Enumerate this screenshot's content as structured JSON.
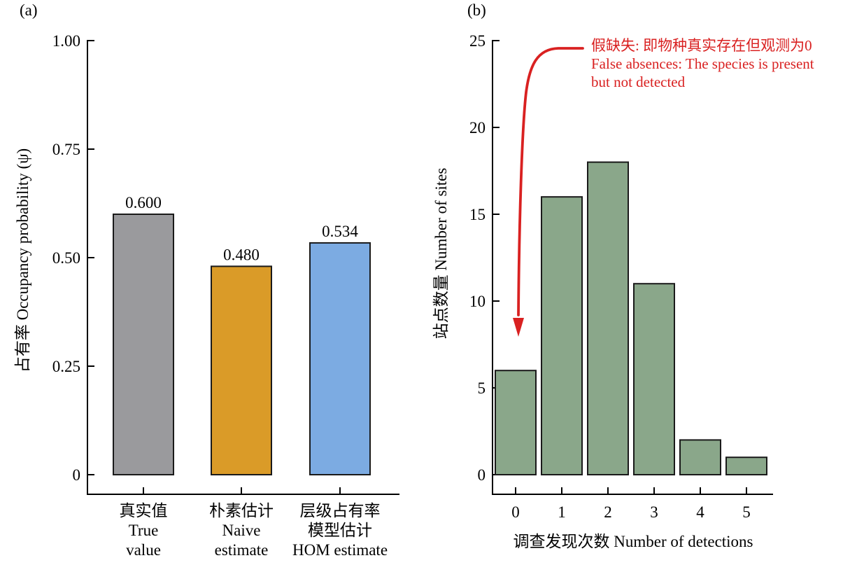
{
  "panels": {
    "a": {
      "tag": "(a)"
    },
    "b": {
      "tag": "(b)"
    }
  },
  "chart_data": [
    {
      "type": "bar",
      "panel": "a",
      "title": "",
      "ylabel": "占有率 Occupancy probability (ψ)",
      "xlabel": "",
      "categories": [
        [
          "真实值",
          "True",
          "value"
        ],
        [
          "朴素估计",
          "Naive",
          "estimate"
        ],
        [
          "层级占有率",
          "模型估计",
          "HOM estimate"
        ]
      ],
      "values": [
        0.6,
        0.48,
        0.534
      ],
      "value_labels": [
        "0.600",
        "0.480",
        "0.534"
      ],
      "colors": [
        "#9A9A9D",
        "#DA9B28",
        "#7CABE2"
      ],
      "bar_border_color": "#1a1a1a",
      "ytick_values": [
        0,
        0.25,
        0.5,
        0.75,
        1.0
      ],
      "ytick_labels": [
        "0",
        "0.25",
        "0.50",
        "0.75",
        "1.00"
      ],
      "ylim": [
        0,
        1.0
      ],
      "grid": false,
      "legend": "none"
    },
    {
      "type": "bar",
      "panel": "b",
      "title": "",
      "ylabel": "站点数量 Number of sites",
      "xlabel": "调查发现次数 Number of detections",
      "categories": [
        [
          "0"
        ],
        [
          "1"
        ],
        [
          "2"
        ],
        [
          "3"
        ],
        [
          "4"
        ],
        [
          "5"
        ]
      ],
      "values": [
        6,
        16,
        18,
        11,
        2,
        1
      ],
      "colors": [
        "#8AA78A",
        "#8AA78A",
        "#8AA78A",
        "#8AA78A",
        "#8AA78A",
        "#8AA78A"
      ],
      "bar_border_color": "#1a1a1a",
      "ytick_values": [
        0,
        5,
        10,
        15,
        20,
        25
      ],
      "ytick_labels": [
        "0",
        "5",
        "10",
        "15",
        "20",
        "25"
      ],
      "ylim": [
        0,
        25
      ],
      "grid": false,
      "legend": "none",
      "annotation": {
        "lines": [
          "假缺失: 即物种真实存在但观测为0",
          "False absences: The species is present",
          "but not detected"
        ],
        "color": "#D92121",
        "target_category": "0"
      }
    }
  ]
}
